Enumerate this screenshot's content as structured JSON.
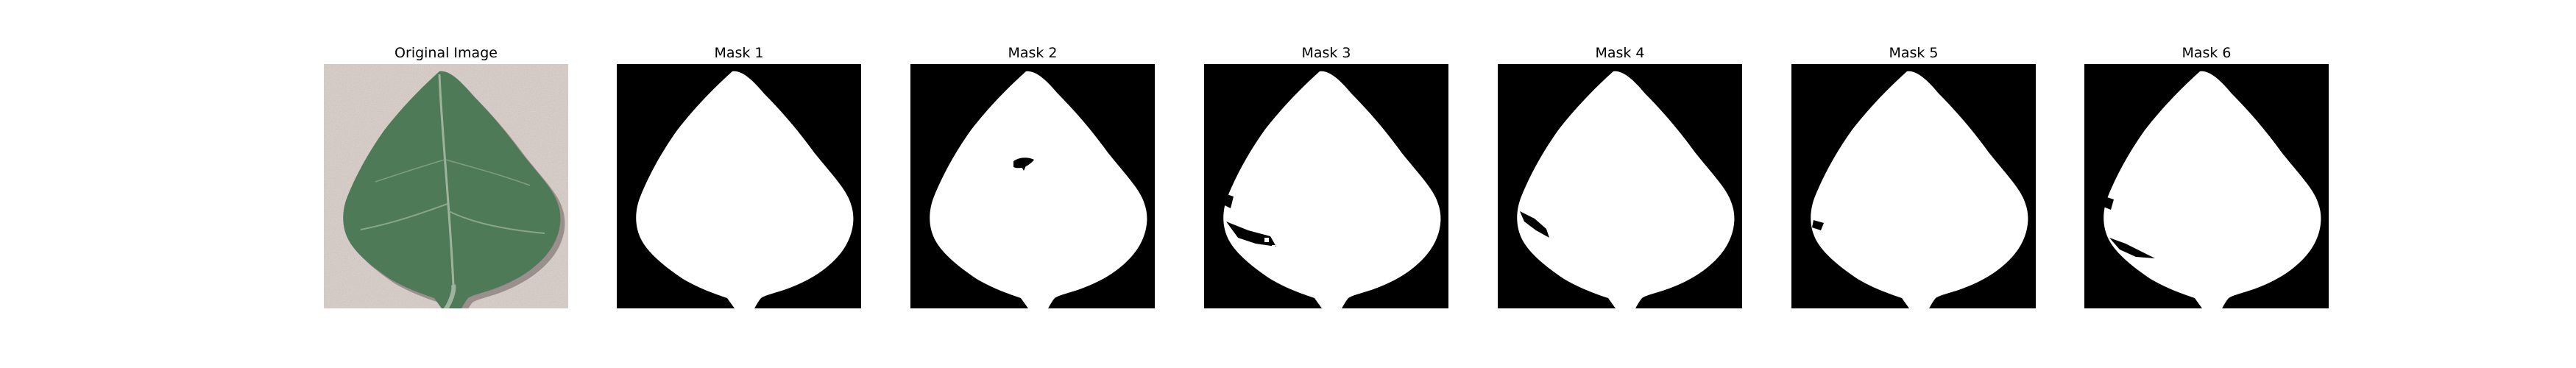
{
  "panels": [
    {
      "title": "Original Image",
      "kind": "photo"
    },
    {
      "title": "Mask 1",
      "kind": "mask"
    },
    {
      "title": "Mask 2",
      "kind": "mask"
    },
    {
      "title": "Mask 3",
      "kind": "mask"
    },
    {
      "title": "Mask 4",
      "kind": "mask"
    },
    {
      "title": "Mask 5",
      "kind": "mask"
    },
    {
      "title": "Mask 6",
      "kind": "mask"
    }
  ],
  "colors": {
    "background": "#ffffff",
    "mask_background": "#000000",
    "mask_foreground": "#ffffff",
    "photo_background": "#d9cdc8",
    "leaf_fill": "#4f7a58",
    "leaf_dark": "#3b6045",
    "leaf_vein": "#9fb39c",
    "shadow": "#6b5f5c"
  }
}
